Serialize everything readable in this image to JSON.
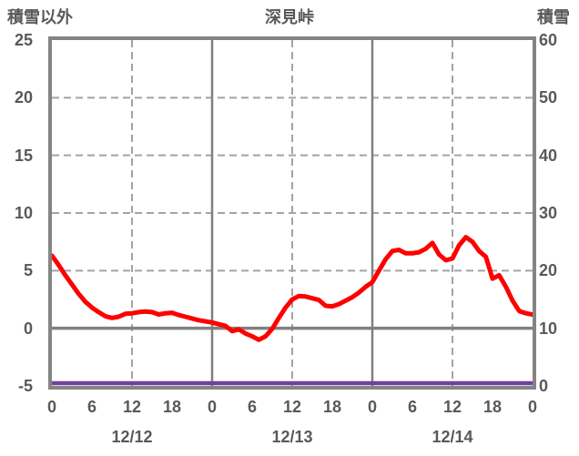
{
  "header": {
    "left_axis_title": "積雪以外",
    "chart_title": "深見峠",
    "right_axis_title": "積雪"
  },
  "colors": {
    "temperature_line": "#FF0000",
    "snow_depth_line": "#7040A0",
    "axis_border": "#848484",
    "solid_gridline": "#808080",
    "dashed_gridline": "#A3A3A3",
    "text": "#595959",
    "background": "#FFFFFF"
  },
  "chart_data": {
    "type": "line",
    "title": "深見峠",
    "axes": {
      "left": {
        "title": "積雪以外",
        "min": -5,
        "max": 25,
        "ticks": [
          25,
          20,
          15,
          10,
          5,
          0,
          -5
        ]
      },
      "right": {
        "title": "積雪",
        "min": 0,
        "max": 60,
        "ticks": [
          60,
          50,
          40,
          30,
          20,
          10,
          0
        ]
      },
      "x": {
        "span_hours": 72,
        "hour_tick_interval": 6,
        "hour_tick_labels": [
          "0",
          "6",
          "12",
          "18",
          "0",
          "6",
          "12",
          "18",
          "0",
          "6",
          "12",
          "18",
          "0"
        ],
        "date_labels": [
          "12/12",
          "12/13",
          "12/14"
        ]
      }
    },
    "grid": {
      "horizontal_dashed_left_values": [
        20,
        15,
        10,
        5
      ],
      "horizontal_solid_left_values": [
        0
      ],
      "vertical_dashed_hours": [
        12,
        36,
        60
      ],
      "vertical_solid_hours": [
        24,
        48
      ]
    },
    "series": [
      {
        "name": "積雪以外",
        "axis": "left",
        "color": "#FF0000",
        "x_start_hour": 0,
        "x_step_hours": 1,
        "values": [
          6.3,
          5.5,
          4.6,
          3.8,
          3.0,
          2.3,
          1.8,
          1.4,
          1.05,
          0.9,
          1.0,
          1.25,
          1.3,
          1.4,
          1.45,
          1.4,
          1.2,
          1.3,
          1.35,
          1.15,
          1.0,
          0.85,
          0.7,
          0.6,
          0.5,
          0.35,
          0.2,
          -0.25,
          -0.1,
          -0.45,
          -0.7,
          -1.0,
          -0.7,
          -0.05,
          0.9,
          1.8,
          2.5,
          2.8,
          2.75,
          2.6,
          2.45,
          1.95,
          1.9,
          2.1,
          2.4,
          2.7,
          3.1,
          3.6,
          4.0,
          5.0,
          6.0,
          6.7,
          6.8,
          6.5,
          6.5,
          6.6,
          6.9,
          7.4,
          6.4,
          5.9,
          6.05,
          7.2,
          7.9,
          7.5,
          6.7,
          6.2,
          4.3,
          4.6,
          3.6,
          2.4,
          1.5,
          1.3,
          1.2
        ]
      },
      {
        "name": "積雪",
        "axis": "right",
        "color": "#7040A0",
        "constant_value": 0
      }
    ]
  }
}
